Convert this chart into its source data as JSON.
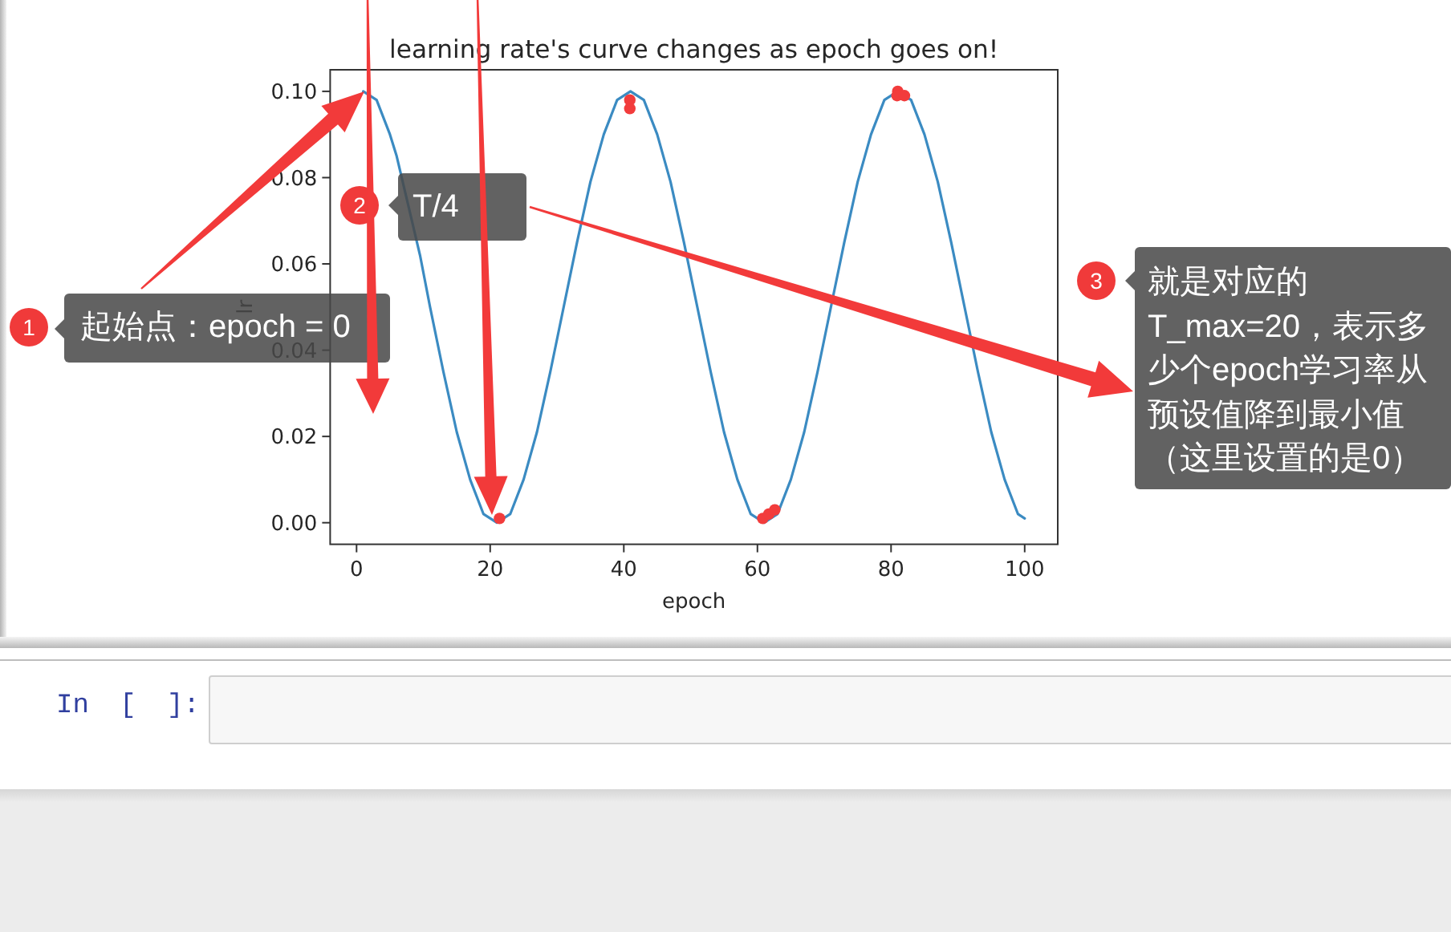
{
  "chart_data": {
    "type": "line",
    "title": "learning rate's curve changes as epoch goes on!",
    "xlabel": "epoch",
    "ylabel": "lr",
    "series": [
      {
        "color": "#3b8bc2",
        "x": [
          1,
          3,
          5,
          6,
          9.5,
          11,
          13,
          15,
          17,
          19,
          21,
          23,
          25,
          27,
          29,
          31,
          33,
          35,
          37,
          39,
          41,
          43,
          45,
          47,
          49,
          51,
          53,
          55,
          57,
          59,
          61,
          63,
          65,
          67,
          69,
          71,
          73,
          75,
          77,
          79,
          81,
          83,
          85,
          87,
          89,
          91,
          93,
          95,
          97,
          99,
          100
        ],
        "values": [
          0.1,
          0.098,
          0.09,
          0.085,
          0.062,
          0.05,
          0.035,
          0.021,
          0.01,
          0.002,
          0.0,
          0.002,
          0.01,
          0.021,
          0.035,
          0.05,
          0.065,
          0.079,
          0.09,
          0.098,
          0.1,
          0.098,
          0.09,
          0.079,
          0.065,
          0.05,
          0.035,
          0.021,
          0.01,
          0.002,
          0.0,
          0.002,
          0.01,
          0.021,
          0.035,
          0.05,
          0.065,
          0.079,
          0.09,
          0.098,
          0.1,
          0.098,
          0.09,
          0.079,
          0.065,
          0.05,
          0.035,
          0.021,
          0.01,
          0.002,
          0.001
        ]
      },
      {
        "type": "scatter",
        "color": "#f23c3c",
        "x": [
          21.4,
          40.9,
          40.9,
          60.8,
          61.7,
          62.6,
          81.0,
          80.9,
          82.0
        ],
        "values": [
          0.001,
          0.098,
          0.096,
          0.001,
          0.002,
          0.003,
          0.1,
          0.099,
          0.099
        ]
      }
    ],
    "xlim": [
      -3.95,
      104.95
    ],
    "ylim": [
      -0.005,
      0.105
    ],
    "xticks": [
      0,
      20,
      40,
      60,
      80,
      100
    ],
    "yticks": [
      {
        "value": 0,
        "label": "0.00"
      },
      {
        "value": 0.02,
        "label": "0.02"
      },
      {
        "value": 0.04,
        "label": "0.04"
      },
      {
        "value": 0.06,
        "label": "0.06"
      },
      {
        "value": 0.08,
        "label": "0.08"
      },
      {
        "value": 0.1,
        "label": "0.10"
      }
    ],
    "annotations": [
      "1",
      "起始点：epoch = 0",
      "2",
      "T/4",
      "3",
      "就是对应的T_max=20，表示多少个epoch学习率从预设值降到最小值（这里设置的是0）",
      "In [ ]:"
    ]
  }
}
